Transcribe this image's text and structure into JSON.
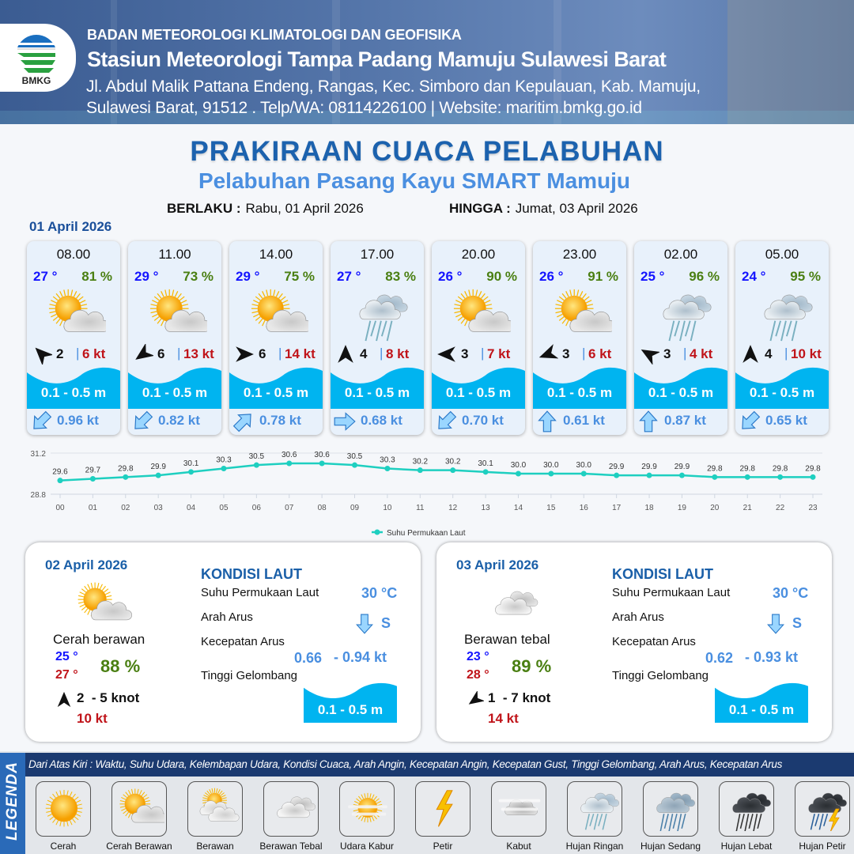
{
  "header": {
    "agency": "BADAN METEOROLOGI KLIMATOLOGI DAN GEOFISIKA",
    "station": "Stasiun Meteorologi Tampa Padang Mamuju Sulawesi Barat",
    "address_line1": "Jl. Abdul Malik Pattana Endeng, Rangas, Kec. Simboro dan Kepulauan, Kab. Mamuju,",
    "address_line2": "Sulawesi Barat, 91512 . Telp/WA: 08114226100 | Website: maritim.bmkg.go.id",
    "logo_text": "BMKG"
  },
  "title": "PRAKIRAAN CUACA PELABUHAN",
  "subtitle": "Pelabuhan Pasang Kayu SMART Mamuju",
  "validity": {
    "from_label": "BERLAKU :",
    "from_value": "Rabu, 01 April 2026",
    "to_label": "HINGGA :",
    "to_value": "Jumat, 03 April 2026"
  },
  "day1": {
    "date": "01 April 2026",
    "cards": [
      {
        "time": "08.00",
        "temp": "27 °",
        "humidity": "81 %",
        "icon": "cerah-berawan",
        "wind_dir_deg": 315,
        "wind_speed": "2",
        "gust": "6 kt",
        "wave": "0.1 - 0.5 m",
        "current_dir_deg": 225,
        "current_speed": "0.96 kt"
      },
      {
        "time": "11.00",
        "temp": "29 °",
        "humidity": "73 %",
        "icon": "cerah-berawan",
        "wind_dir_deg": 235,
        "wind_speed": "6",
        "gust": "13 kt",
        "wave": "0.1 - 0.5 m",
        "current_dir_deg": 225,
        "current_speed": "0.82 kt"
      },
      {
        "time": "14.00",
        "temp": "29 °",
        "humidity": "75 %",
        "icon": "cerah-berawan",
        "wind_dir_deg": 90,
        "wind_speed": "6",
        "gust": "14 kt",
        "wave": "0.1 - 0.5 m",
        "current_dir_deg": 45,
        "current_speed": "0.78 kt"
      },
      {
        "time": "17.00",
        "temp": "27 °",
        "humidity": "83 %",
        "icon": "hujan-ringan",
        "wind_dir_deg": 0,
        "wind_speed": "4",
        "gust": "8 kt",
        "wave": "0.1 - 0.5 m",
        "current_dir_deg": 90,
        "current_speed": "0.68 kt"
      },
      {
        "time": "20.00",
        "temp": "26 °",
        "humidity": "90 %",
        "icon": "cerah-berawan",
        "wind_dir_deg": 270,
        "wind_speed": "3",
        "gust": "7 kt",
        "wave": "0.1 - 0.5 m",
        "current_dir_deg": 225,
        "current_speed": "0.70 kt"
      },
      {
        "time": "23.00",
        "temp": "26 °",
        "humidity": "91 %",
        "icon": "cerah-berawan",
        "wind_dir_deg": 250,
        "wind_speed": "3",
        "gust": "6 kt",
        "wave": "0.1 - 0.5 m",
        "current_dir_deg": 0,
        "current_speed": "0.61 kt"
      },
      {
        "time": "02.00",
        "temp": "25 °",
        "humidity": "96 %",
        "icon": "hujan-ringan",
        "wind_dir_deg": 300,
        "wind_speed": "3",
        "gust": "4 kt",
        "wave": "0.1 - 0.5 m",
        "current_dir_deg": 0,
        "current_speed": "0.87 kt"
      },
      {
        "time": "05.00",
        "temp": "24 °",
        "humidity": "95 %",
        "icon": "hujan-ringan",
        "wind_dir_deg": 0,
        "wind_speed": "4",
        "gust": "10 kt",
        "wave": "0.1 - 0.5 m",
        "current_dir_deg": 225,
        "current_speed": "0.65 kt"
      }
    ]
  },
  "chart_data": {
    "type": "line",
    "categories": [
      "00",
      "01",
      "02",
      "03",
      "04",
      "05",
      "06",
      "07",
      "08",
      "09",
      "10",
      "11",
      "12",
      "13",
      "14",
      "15",
      "16",
      "17",
      "18",
      "19",
      "20",
      "21",
      "22",
      "23"
    ],
    "series": [
      {
        "name": "Suhu Permukaan Laut",
        "values": [
          29.6,
          29.7,
          29.8,
          29.9,
          30.1,
          30.3,
          30.5,
          30.6,
          30.6,
          30.5,
          30.3,
          30.2,
          30.2,
          30.1,
          30.0,
          30.0,
          30.0,
          29.9,
          29.9,
          29.9,
          29.8,
          29.8,
          29.8,
          29.8
        ],
        "labels": [
          "29.6",
          "29.7",
          "29.8",
          "29.9",
          "30.1",
          "30.3",
          "30.5",
          "30.6",
          "30.6",
          "30.5",
          "30.3",
          "30.2",
          "30.2",
          "30.1",
          "30.0",
          "30.0",
          "30.0",
          "29.9",
          "29.9",
          "29.9",
          "29.8",
          "29.8",
          "29.8",
          "29.8"
        ]
      }
    ],
    "ylim": [
      28.8,
      31.2
    ],
    "yticks": [
      "31.2",
      "28.8"
    ],
    "legend_position": "bottom",
    "grid": true,
    "line_color": "#1ecfc0"
  },
  "panels": [
    {
      "date": "02 April 2026",
      "icon": "cerah-berawan",
      "condition": "Cerah berawan",
      "temp_min": "25 °",
      "temp_max": "27 °",
      "humidity": "88 %",
      "wind_dir_deg": 0,
      "wind": "2  - 5 knot",
      "gust": "10 kt",
      "sea_title": "KONDISI LAUT",
      "sst_label": "Suhu Permukaan Laut",
      "sst": "30 °C",
      "cur_dir_label": "Arah Arus",
      "cur_dir_deg": 180,
      "cur_dir": "S",
      "cur_speed_label": "Kecepatan Arus",
      "cur_min": "0.66",
      "cur_max": "- 0.94 kt",
      "wave_label": "Tinggi Gelombang",
      "wave": "0.1 - 0.5 m"
    },
    {
      "date": "03 April 2026",
      "icon": "berawan-tebal",
      "condition": "Berawan tebal",
      "temp_min": "23 °",
      "temp_max": "28 °",
      "humidity": "89 %",
      "wind_dir_deg": 235,
      "wind": "1  - 7 knot",
      "gust": "14 kt",
      "sea_title": "KONDISI LAUT",
      "sst_label": "Suhu Permukaan Laut",
      "sst": "30 °C",
      "cur_dir_label": "Arah Arus",
      "cur_dir_deg": 180,
      "cur_dir": "S",
      "cur_speed_label": "Kecepatan Arus",
      "cur_min": "0.62",
      "cur_max": "- 0.93 kt",
      "wave_label": "Tinggi Gelombang",
      "wave": "0.1 - 0.5 m"
    }
  ],
  "legend": {
    "title": "LEGENDA",
    "description": "Dari Atas Kiri : Waktu, Suhu Udara, Kelembapan Udara, Kondisi Cuaca, Arah Angin, Kecepatan Angin, Kecepatan Gust, Tinggi Gelombang, Arah Arus, Kecepatan Arus",
    "items": [
      {
        "icon": "cerah",
        "label": "Cerah"
      },
      {
        "icon": "cerah-berawan",
        "label": "Cerah Berawan"
      },
      {
        "icon": "berawan",
        "label": "Berawan"
      },
      {
        "icon": "berawan-tebal",
        "label": "Berawan Tebal"
      },
      {
        "icon": "udara-kabur",
        "label": "Udara Kabur"
      },
      {
        "icon": "petir",
        "label": "Petir"
      },
      {
        "icon": "kabut",
        "label": "Kabut"
      },
      {
        "icon": "hujan-ringan",
        "label": "Hujan Ringan"
      },
      {
        "icon": "hujan-sedang",
        "label": "Hujan Sedang"
      },
      {
        "icon": "hujan-lebat",
        "label": "Hujan Lebat"
      },
      {
        "icon": "hujan-petir",
        "label": "Hujan Petir"
      }
    ]
  },
  "colors": {
    "wave": "#00b4f0",
    "title": "#1c62ae",
    "current": "#4a8fe0",
    "gust": "#c0141a",
    "humidity": "#4a7f12",
    "temp": "#1414ff"
  }
}
